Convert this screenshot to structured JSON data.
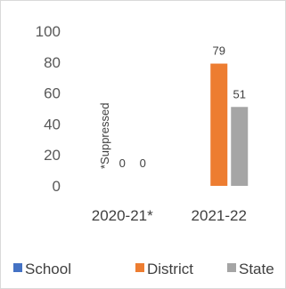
{
  "chart_data": {
    "type": "bar",
    "categories": [
      "2020-21*",
      "2021-22"
    ],
    "series": [
      {
        "name": "School",
        "values": [
          0,
          null
        ],
        "labels": [
          "",
          ""
        ],
        "color": "#4472c4"
      },
      {
        "name": "District",
        "values": [
          0,
          79
        ],
        "labels": [
          "0",
          "79"
        ],
        "color": "#ed7d31"
      },
      {
        "name": "State",
        "values": [
          0,
          51
        ],
        "labels": [
          "0",
          "51"
        ],
        "color": "#a5a5a5"
      }
    ],
    "ylim": [
      0,
      100
    ],
    "yticks": [
      0,
      20,
      40,
      60,
      80,
      100
    ],
    "annotation": "*Suppressed",
    "grid": false,
    "legend": "bottom"
  }
}
